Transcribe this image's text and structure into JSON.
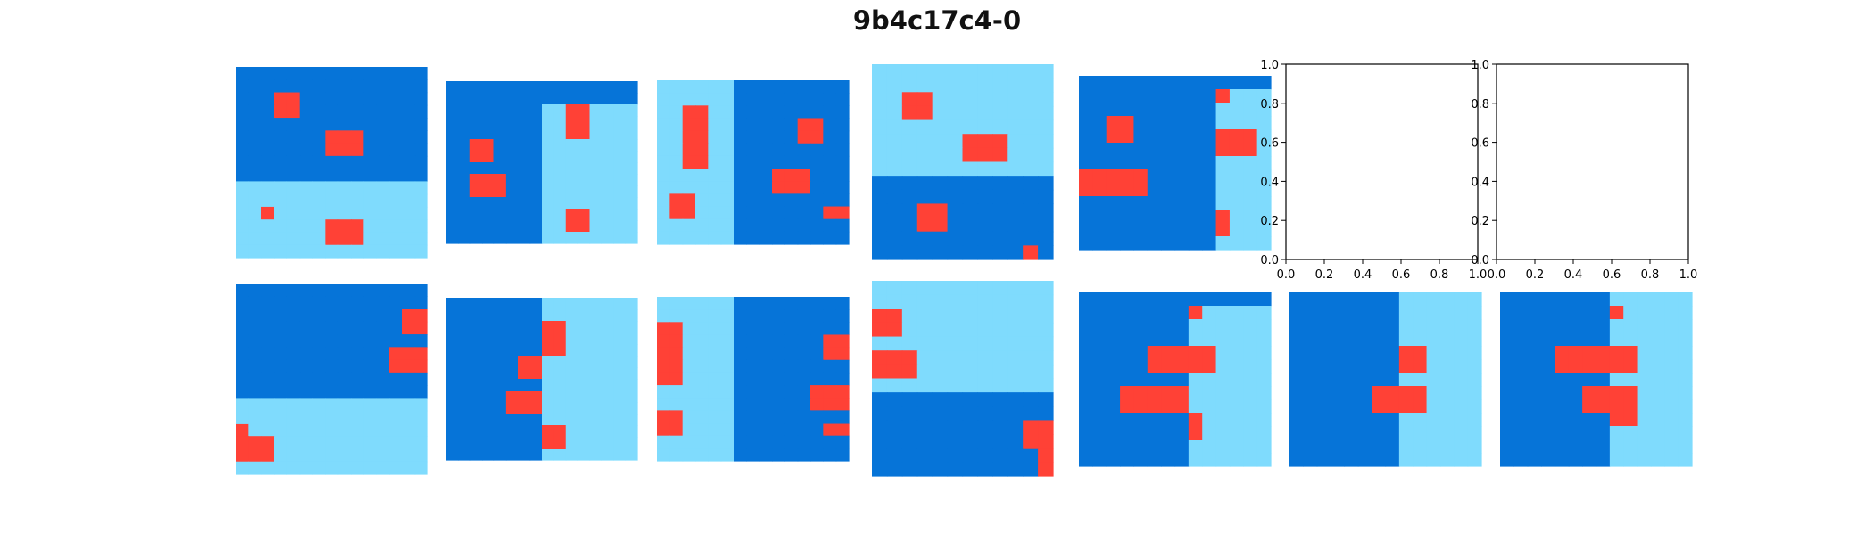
{
  "title": "9b4c17c4-0",
  "colors": {
    "dark_blue": "#0674D8",
    "light_blue": "#7FDBFD",
    "red": "#FF4136",
    "white": "#FFFFFF",
    "axis": "#000000"
  },
  "empty_axis_ticks": [
    "0.0",
    "0.2",
    "0.4",
    "0.6",
    "0.8",
    "1.0"
  ],
  "grids": [
    {
      "id": "train-0-input",
      "rows": [
        "bbbbbbbbbbbbbbb",
        "bbbbbbbbbbbbbbb",
        "bbbrrbbbbbbbbbb",
        "bbbrrbbbbbbbbbb",
        "bbbbbbbbbbbbbbb",
        "bbbbbbbrrrbbbbb",
        "bbbbbbbrrrbbbbb",
        "bbbbbbbbbbbbbbb",
        "bbbbbbbbbbbbbbb",
        "lllllllllllllll",
        "lllllllllllllll",
        "llrllllllllllll",
        "lllllllrrrlllll",
        "lllllllrrrlllll",
        "lllllllllllllll"
      ]
    },
    {
      "id": "train-1-input",
      "rows": [
        "bbbbbbbbbbbbbbb",
        "bbbbbbbbbbbbbbb",
        "bbbbbbbbllrrlll",
        "bbbbbbbbllrrlll",
        "bbbbbbbbllrrlll",
        "bbrrbbbbllllllll",
        "bbrrbbbbllllllll",
        "bbbbbbbbllllllll",
        "bbrrrbbbllllllll",
        "bbrrrbbbllllllll",
        "bbbbbbbbllllllll",
        "bbbbbbbbllrrllll",
        "bbbbbbbbllrrllll",
        "bbbbbbbbllllllll"
      ]
    },
    {
      "id": "train-2-input",
      "rows": [
        "llllllbbbbbbbbb",
        "llllllbbbbbbbbb",
        "llrrllbbbbbbbbb",
        "llrrllbbbbbrrbb",
        "llrrllbbbbbrrbb",
        "llrrllbbbbbbbbb",
        "llrrllbbbbbbbbb",
        "llllllbbbrrrbbb",
        "llllllbbbrrrbbb",
        "lrrlllbbbbbbbbb",
        "lrrlllbbbbbbbrr",
        "llllllbbbbbbbbb",
        "llllllbbbbbbbbb"
      ]
    },
    {
      "id": "test-0-input",
      "rows": [
        "llllllllllll",
        "llllllllllll",
        "llrrllllllll",
        "llrrllllllll",
        "llllllllllll",
        "llllllrrrlll",
        "llllllrrrlll",
        "llllllllllll",
        "bbbbbbbbbbbb",
        "bbbbbbbbbbbb",
        "bbbrrbbbbbbb",
        "bbbrrbbbbbbb",
        "bbbbbbbbbbbb",
        "bbbbbbbbbbrb"
      ]
    },
    {
      "id": "test-1-input",
      "rows": [
        "bbbbbbbbbbbbbb",
        "bbbbbbbbbbrlll",
        "bbbbbbbbbbllll",
        "bbrrbbbbbbllll",
        "bbrrbbbbbbrrrl",
        "bbbbbbbbbbrrrl",
        "bbbbbbbbbbllll",
        "rrrrrbbbbbllll",
        "rrrrrbbbbbllll",
        "bbbbbbbbbbllll",
        "bbbbbbbbbbrlll",
        "bbbbbbbbbbrlll",
        "bbbbbbbbbbllll"
      ]
    },
    {
      "id": "train-0-output",
      "rows": [
        "bbbbbbbbbbbbbbb",
        "bbbbbbbbbbbbbbb",
        "bbbbbbbbbbbbbrr",
        "bbbbbbbbbbbbbrr",
        "bbbbbbbbbbbbbbb",
        "bbbbbbbbbbbbrrr",
        "bbbbbbbbbbbbrrr",
        "bbbbbbbbbbbbbbb",
        "bbbbbbbbbbbbbbb",
        "lllllllllllllll",
        "lllllllllllllll",
        "rllllllllllllll",
        "rrrllllllllllll",
        "rrrllllllllllll",
        "lllllllllllllll"
      ]
    },
    {
      "id": "train-1-output",
      "rows": [
        "bbbbbbbbllllllll",
        "bbbbbbbbllllllll",
        "bbbbbbbbrrllllll",
        "bbbbbbbbrrllllll",
        "bbbbbbbbrrllllll",
        "bbbbbbrrllllllll",
        "bbbbbbrrllllllll",
        "bbbbbbbbllllllll",
        "bbbbbrrrllllllll",
        "bbbbbrrrllllllll",
        "bbbbbbbbllllllll",
        "bbbbbbbbrrllllll",
        "bbbbbbbbrrllllll",
        "bbbbbbbbllllllll"
      ]
    },
    {
      "id": "train-2-output",
      "rows": [
        "llllllbbbbbbbbb",
        "llllllbbbbbbbbb",
        "rrllllbbbbbbbbb",
        "rrllllbbbbbbbrr",
        "rrllllbbbbbbbrr",
        "rrllllbbbbbbbbb",
        "rrllllbbbbbbbbb",
        "llllllbbbbbbrrr",
        "llllllbbbbbbrrr",
        "rrllllbbbbbbbbb",
        "rrllllbbbbbbbrr",
        "llllllbbbbbbbbb",
        "llllllbbbbbbbbb"
      ]
    },
    {
      "id": "test-0-output",
      "rows": [
        "llllllllllll",
        "llllllllllll",
        "rrllllllllll",
        "rrllllllllll",
        "llllllllllll",
        "rrrlllllllll",
        "rrrlllllllll",
        "llllllllllll",
        "bbbbbbbbbbbb",
        "bbbbbbbbbbbb",
        "bbbbbbbbbbrr",
        "bbbbbbbbbbrr",
        "bbbbbbbbbbbr",
        "bbbbbbbbbbbr"
      ]
    },
    {
      "id": "test-1-output",
      "rows": [
        "bbbbbbbbbbbbbb",
        "bbbbbbbbrlllll",
        "bbbbbbbbllllll",
        "bbbbbbbbllllll",
        "bbbbbrrrrrllll",
        "bbbbbrrrrrllll",
        "bbbbbbbbllllll",
        "bbbrrrrrllllll",
        "bbbrrrrrllllll",
        "bbbbbbbbrlllll",
        "bbbbbbbbrlllll",
        "bbbbbbbbllllll",
        "bbbbbbbbllllll"
      ]
    },
    {
      "id": "candidate-a",
      "rows": [
        "bbbbbbbbllllll",
        "bbbbbbbbllllll",
        "bbbbbbbbllllll",
        "bbbbbbbbllllll",
        "bbbbbbbbrrllll",
        "bbbbbbbbrrllll",
        "bbbbbbbbllllll",
        "bbbbbbrrrrllll",
        "bbbbbbrrrrllll",
        "bbbbbbbbllllll",
        "bbbbbbbbllllll",
        "bbbbbbbbllllll",
        "bbbbbbbbllllll"
      ]
    },
    {
      "id": "candidate-b",
      "rows": [
        "bbbbbbbbllllll",
        "bbbbbbbbrlllll",
        "bbbbbbbbllllll",
        "bbbbbbbbllllll",
        "bbbbrrrrrrllll",
        "bbbbrrrrrrllll",
        "bbbbbbbbllllll",
        "bbbbbbrrrrllll",
        "bbbbbbrrrrllll",
        "bbbbbbbbrrllll",
        "bbbbbbbbllllll",
        "bbbbbbbbllllll",
        "bbbbbbbbllllll"
      ]
    }
  ]
}
